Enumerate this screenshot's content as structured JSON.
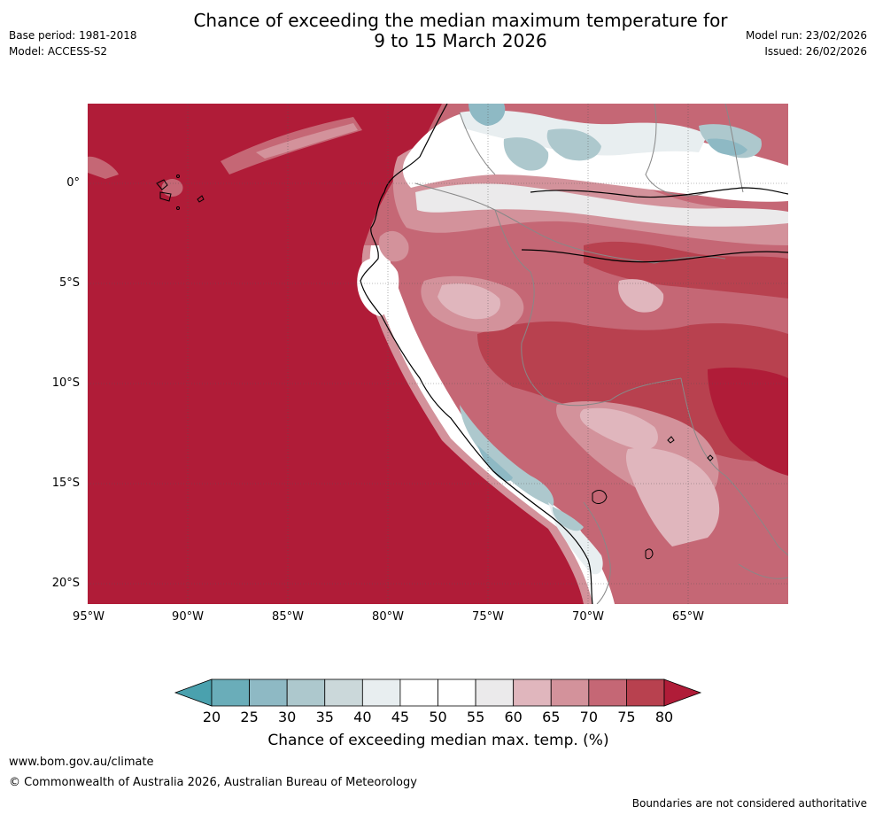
{
  "header": {
    "title_line1": "Chance of exceeding the median maximum temperature for",
    "title_line2": "9 to 15 March 2026",
    "base_period": "Base period: 1981-2018",
    "model": "Model: ACCESS-S2",
    "model_run": "Model run: 23/02/2026",
    "issued": "Issued: 26/02/2026"
  },
  "map": {
    "region": "Western South America and eastern Pacific",
    "lat_labels": [
      "0°",
      "5°S",
      "10°S",
      "15°S",
      "20°S"
    ],
    "lon_labels": [
      "95°W",
      "90°W",
      "85°W",
      "80°W",
      "75°W",
      "70°W",
      "65°W"
    ]
  },
  "legend": {
    "ticks": [
      "20",
      "25",
      "30",
      "35",
      "40",
      "45",
      "50",
      "55",
      "60",
      "65",
      "70",
      "75",
      "80"
    ],
    "colors": [
      "#6aadb9",
      "#8eb9c4",
      "#adc8cd",
      "#cbd8da",
      "#e8eef0",
      "#ffffff",
      "#ffffff",
      "#ebeaeb",
      "#e0b6bd",
      "#d3929b",
      "#c56775",
      "#b8414f"
    ],
    "under_color": "#4aa1ae",
    "over_color": "#b01c38",
    "label": "Chance of exceeding median max. temp. (%)"
  },
  "footer": {
    "website": "www.bom.gov.au/climate",
    "copyright": "© Commonwealth of Australia 2026, Australian Bureau of Meteorology",
    "disclaimer": "Boundaries are not considered authoritative"
  }
}
